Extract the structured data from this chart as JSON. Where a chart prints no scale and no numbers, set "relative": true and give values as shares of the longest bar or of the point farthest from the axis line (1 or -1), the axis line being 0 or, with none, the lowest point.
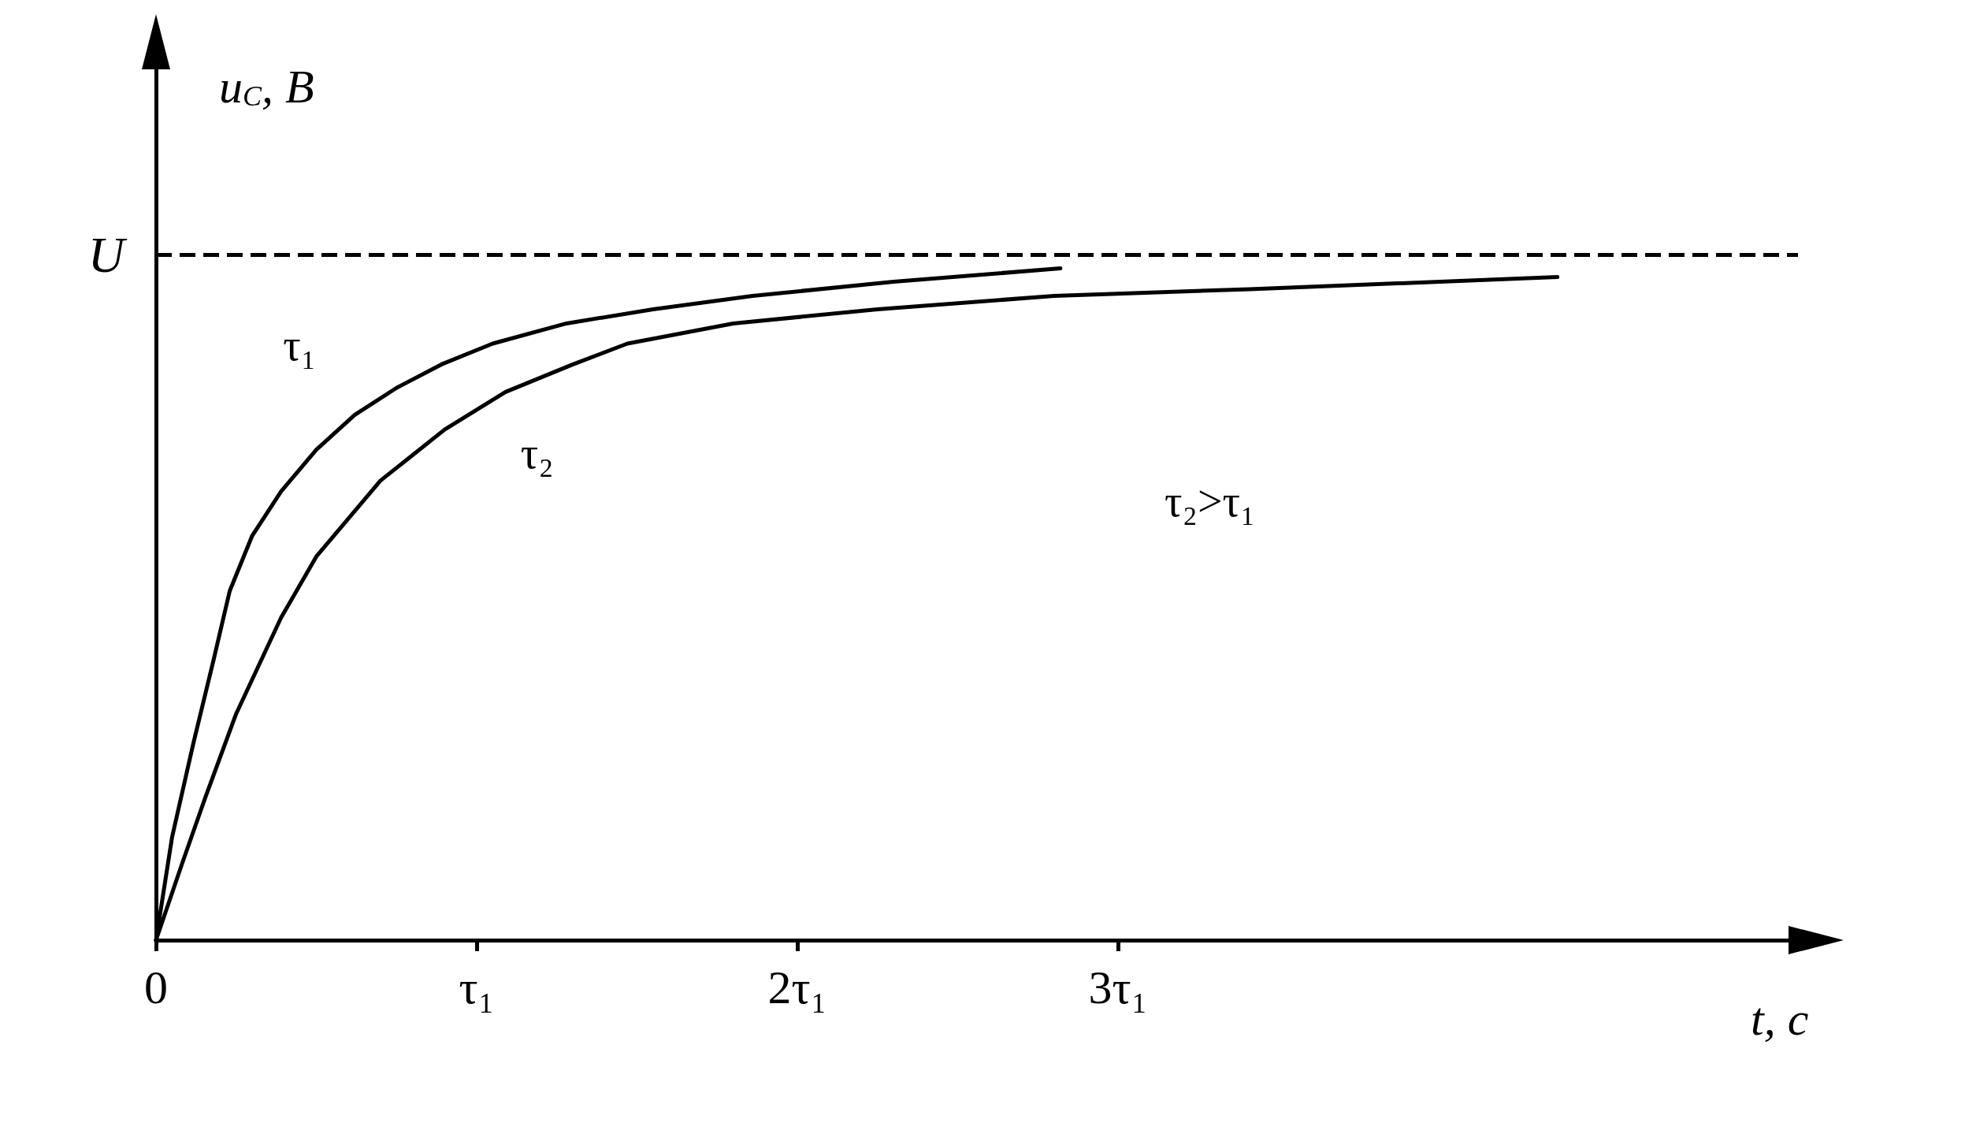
{
  "chart_data": {
    "type": "line",
    "xlabel": "t, с",
    "ylabel": "u$_{C}$, В",
    "relative": true,
    "xlim": [
      0,
      5.12
    ],
    "xticks": [
      {
        "value": 0,
        "label": "0"
      },
      {
        "value": 1,
        "label": "τ₁"
      },
      {
        "value": 2,
        "label": "2τ₁"
      },
      {
        "value": 3,
        "label": "3τ₁"
      }
    ],
    "series": [
      {
        "name": "τ₁",
        "color": "#000000",
        "x": [
          0,
          0.05,
          0.116,
          0.18,
          0.23,
          0.3,
          0.39,
          0.5,
          0.62,
          0.75,
          0.89,
          1.05,
          1.28,
          1.55,
          1.86,
          2.3,
          2.82
        ],
        "values": [
          0,
          0.153,
          0.292,
          0.418,
          0.52,
          0.602,
          0.668,
          0.73,
          0.782,
          0.822,
          0.857,
          0.888,
          0.918,
          0.939,
          0.959,
          0.98,
          1
        ]
      },
      {
        "name": "τ₂",
        "color": "#000000",
        "x": [
          0,
          0.08,
          0.155,
          0.25,
          0.39,
          0.5,
          0.7,
          0.9,
          1.09,
          1.3,
          1.47,
          1.8,
          2.25,
          2.8,
          3.41,
          4.37
        ],
        "values": [
          0,
          0.112,
          0.214,
          0.337,
          0.48,
          0.571,
          0.684,
          0.76,
          0.816,
          0.857,
          0.888,
          0.918,
          0.939,
          0.959,
          0.969,
          0.987
        ]
      }
    ],
    "ref_lines": [
      {
        "axis": "y",
        "value": 1.02,
        "label": "U",
        "color": "#000000",
        "line_style": "dashed"
      }
    ],
    "annotations": [
      "τ₂>τ₁"
    ],
    "marker": "none",
    "line_style": "solid",
    "grid": false,
    "legend": false
  }
}
